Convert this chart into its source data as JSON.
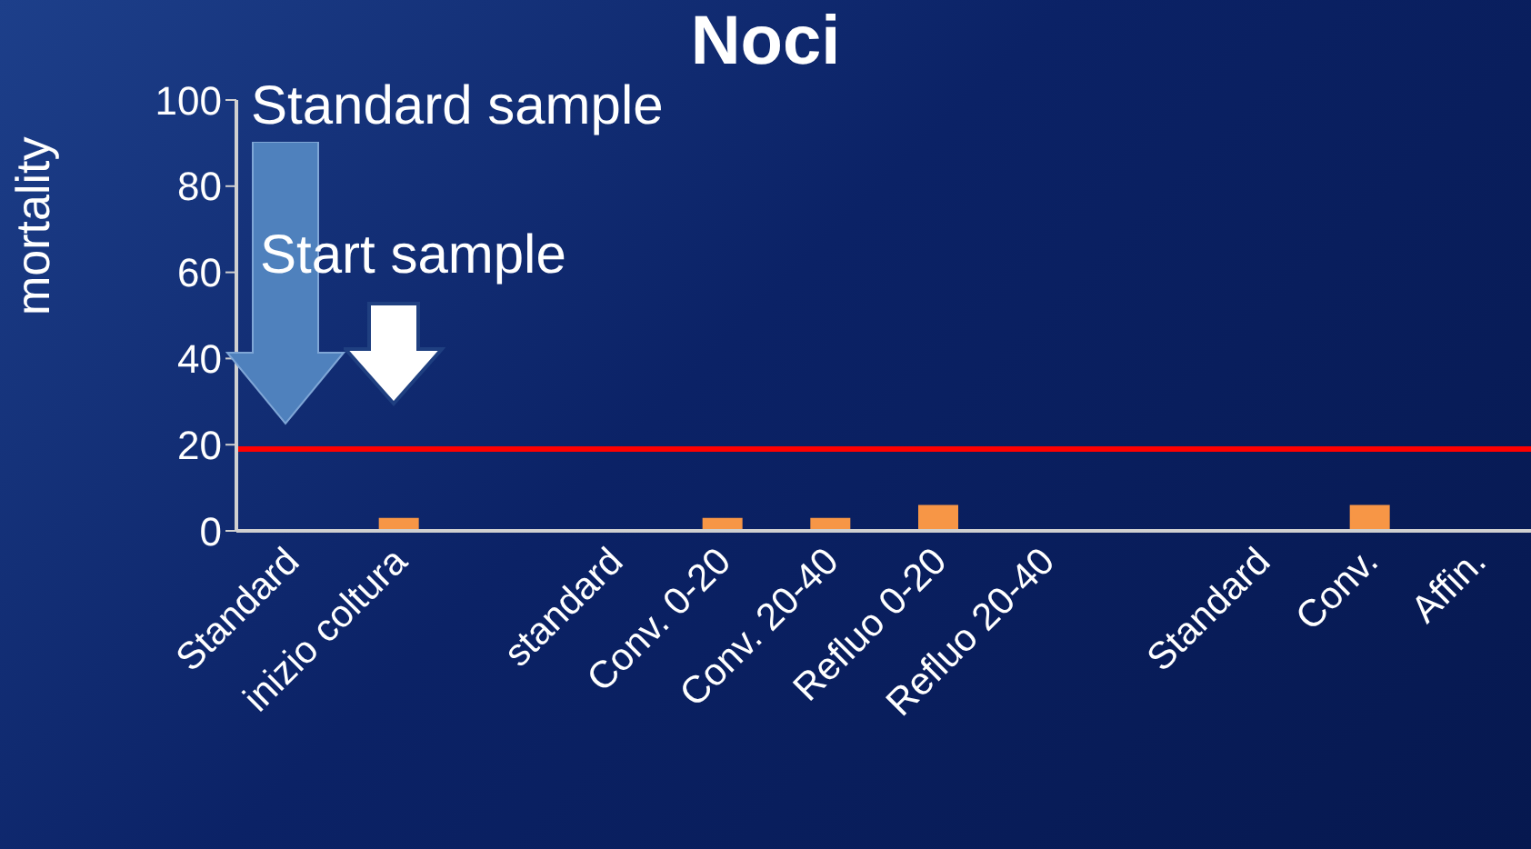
{
  "chart_data": {
    "type": "bar",
    "title": "Noci",
    "ylabel": "mortality",
    "categories": [
      "Standard",
      "inizio coltura",
      null,
      "standard",
      "Conv. 0-20",
      "Conv. 20-40",
      "Refluo 0-20",
      "Refluo 20-40",
      null,
      "Standard",
      "Conv.",
      "Affin."
    ],
    "values": [
      0,
      3,
      0,
      0,
      3,
      3,
      6,
      0,
      0,
      0,
      6,
      0
    ],
    "color": "#f79646",
    "ylim": [
      0,
      100
    ],
    "yticks": [
      0,
      20,
      40,
      60,
      80,
      100
    ],
    "grid": false,
    "legend": false,
    "ref_lines": [
      {
        "axis": "y",
        "value": 19,
        "color": "#ff0000"
      }
    ],
    "annotations": [
      "Standard sample",
      "Start sample"
    ]
  }
}
